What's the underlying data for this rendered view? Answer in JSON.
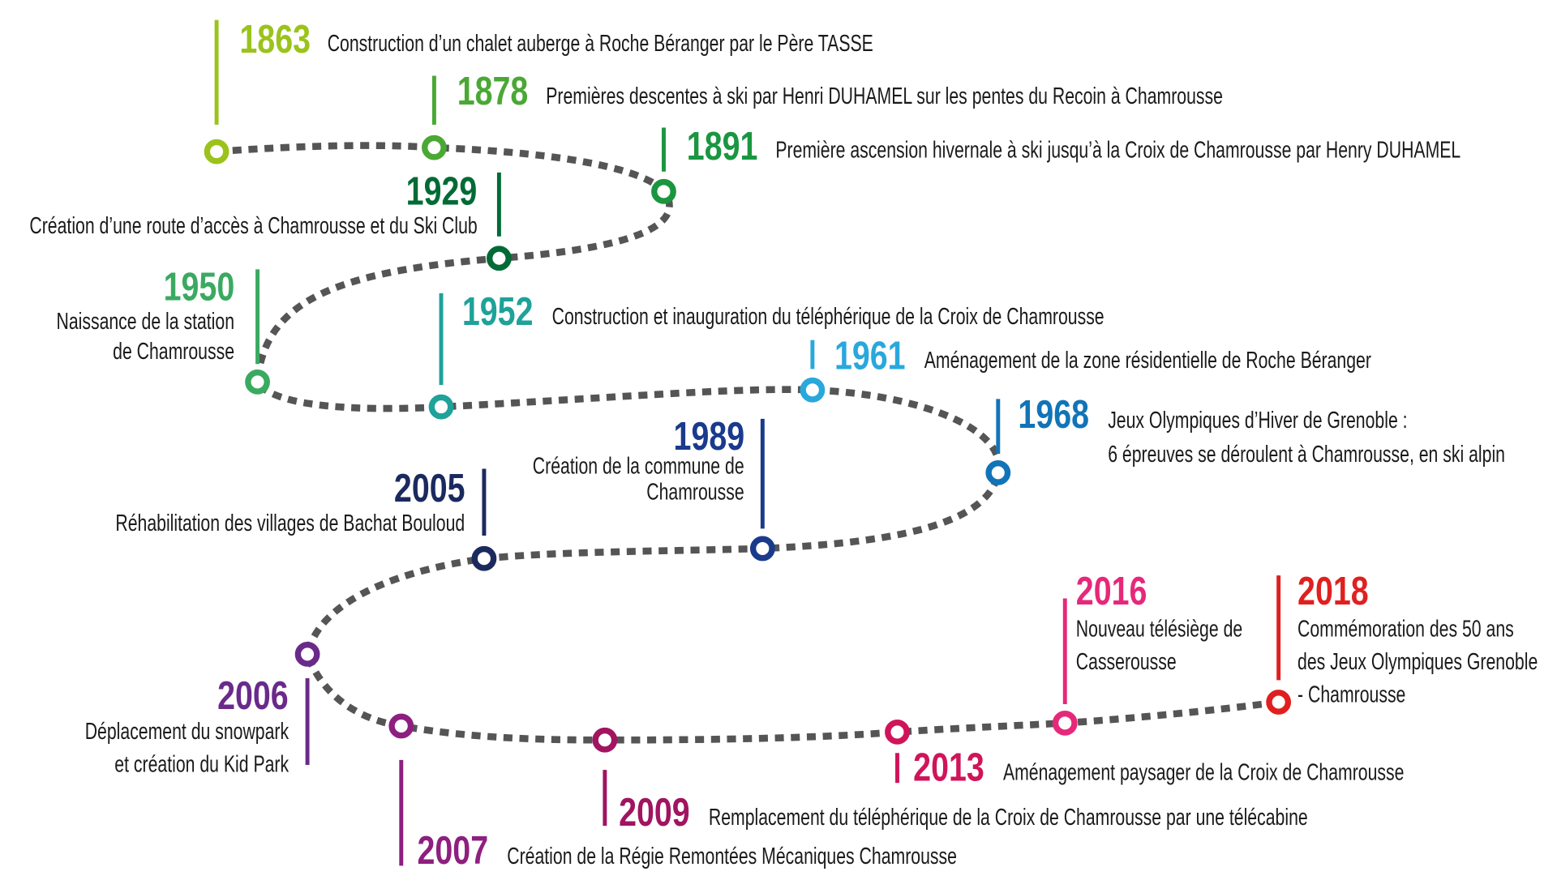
{
  "events": [
    {
      "year": "1863",
      "color": "#9bc31c",
      "lines": [
        "Construction d’un chalet auberge à Roche Béranger par le Père TASSE"
      ]
    },
    {
      "year": "1878",
      "color": "#4aa834",
      "lines": [
        "Premières descentes à ski par Henri DUHAMEL sur les pentes du Recoin à Chamrousse"
      ]
    },
    {
      "year": "1891",
      "color": "#1a9640",
      "lines": [
        "Première ascension hivernale à ski jusqu’à la Croix de Chamrousse par Henry DUHAMEL"
      ]
    },
    {
      "year": "1929",
      "color": "#006b35",
      "lines": [
        "Création d’une route d’accès à Chamrousse et du Ski Club"
      ]
    },
    {
      "year": "1950",
      "color": "#3aaa60",
      "lines": [
        "Naissance de la station",
        "de Chamrousse"
      ]
    },
    {
      "year": "1952",
      "color": "#1ea29a",
      "lines": [
        "Construction et inauguration du téléphérique de la Croix de Chamrousse"
      ]
    },
    {
      "year": "1961",
      "color": "#29a8dc",
      "lines": [
        "Aménagement de la zone résidentielle de Roche Béranger"
      ]
    },
    {
      "year": "1968",
      "color": "#1274b8",
      "lines": [
        "Jeux Olympiques d’Hiver de Grenoble :",
        "6 épreuves se déroulent à Chamrousse, en ski alpin"
      ]
    },
    {
      "year": "1989",
      "color": "#1a3a8c",
      "lines": [
        "Création de la commune de",
        "Chamrousse"
      ]
    },
    {
      "year": "2005",
      "color": "#1b2a5e",
      "lines": [
        "Réhabilitation des villages de Bachat Bouloud"
      ]
    },
    {
      "year": "2006",
      "color": "#6a2a8a",
      "lines": [
        "Déplacement du snowpark",
        "et création du Kid Park"
      ]
    },
    {
      "year": "2007",
      "color": "#8e1f80",
      "lines": [
        "Création de la Régie Remontées Mécaniques Chamrousse"
      ]
    },
    {
      "year": "2009",
      "color": "#a01460",
      "lines": [
        "Remplacement du téléphérique de la Croix de Chamrousse par une télécabine"
      ]
    },
    {
      "year": "2013",
      "color": "#d0145a",
      "lines": [
        "Aménagement paysager de la Croix de Chamrousse"
      ]
    },
    {
      "year": "2016",
      "color": "#e6287a",
      "lines": [
        "Nouveau télésiège de",
        "Casserousse"
      ]
    },
    {
      "year": "2018",
      "color": "#e02020",
      "lines": [
        "Commémoration des 50 ans",
        "des Jeux Olympiques Grenoble",
        "- Chamrousse"
      ]
    }
  ],
  "path_color": "#555555"
}
